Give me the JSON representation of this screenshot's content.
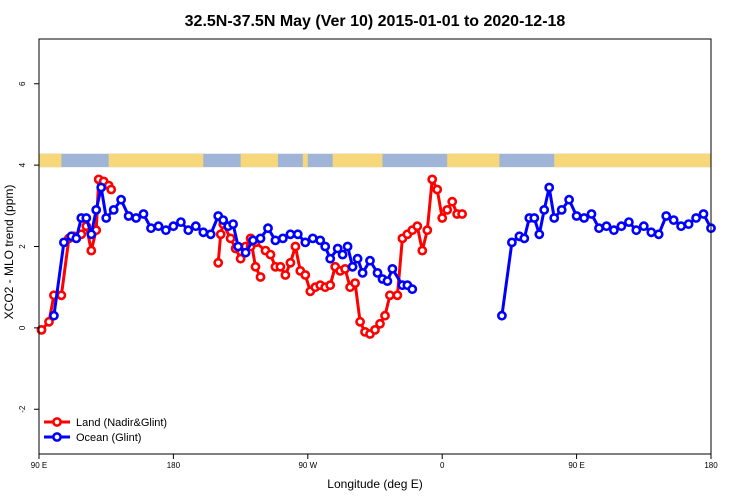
{
  "chart_data": {
    "type": "line",
    "title": "32.5N-37.5N May (Ver 10)   2015-01-01 to 2020-12-18",
    "xlabel": "Longitude (deg E)",
    "ylabel": "XCO2 - MLO trend (ppm)",
    "xlim": [
      -90,
      180
    ],
    "ylim": [
      -3.1,
      7.1
    ],
    "x_ticks": [
      -90,
      -36,
      18,
      72,
      126,
      180
    ],
    "x_tick_labels": [
      "90 E",
      "180",
      "90 W",
      "0",
      "90 E",
      "180"
    ],
    "y_ticks": [
      -2,
      0,
      2,
      4,
      6
    ],
    "y_tick_labels": [
      "-2",
      "0",
      "2",
      "4",
      "6"
    ],
    "grid": false,
    "legend_position": "bottom-left",
    "land_ocean_strip": {
      "y_range": [
        3.95,
        4.28
      ],
      "land_color": "#f6d77a",
      "ocean_color": "#9fb4d6",
      "land_segments": [
        [
          -90,
          -81
        ],
        [
          -62,
          -24
        ],
        [
          -9,
          6
        ],
        [
          16,
          18
        ],
        [
          28,
          48
        ],
        [
          74,
          95
        ],
        [
          117,
          180
        ]
      ]
    },
    "series": [
      {
        "name": "Land (Nadir&Glint)",
        "color": "#ff0000",
        "segments": [
          {
            "x": [
              -89,
              -86,
              -84,
              -81,
              -78,
              -76,
              -73,
              -71,
              -69,
              -67,
              -66,
              -64,
              -62,
              -61
            ],
            "y": [
              -0.05,
              0.15,
              0.8,
              0.8,
              2.2,
              2.25,
              2.3,
              2.5,
              1.9,
              2.4,
              3.65,
              3.6,
              3.5,
              3.4
            ]
          },
          {
            "x": [
              -18,
              -17,
              -16,
              -13,
              -11,
              -9,
              -7,
              -5,
              -3,
              -1
            ],
            "y": [
              1.6,
              2.3,
              2.55,
              2.2,
              1.95,
              1.7,
              2.0,
              2.2,
              1.5,
              1.25
            ]
          },
          {
            "x": [
              -5,
              -3,
              1,
              3,
              5,
              7,
              9,
              11,
              13,
              15,
              17,
              19,
              21,
              23,
              25,
              27,
              29,
              31,
              33,
              35,
              37,
              39,
              41,
              43,
              45,
              47,
              49,
              51,
              54,
              56,
              58,
              60,
              62,
              64,
              66,
              68,
              70,
              72,
              74,
              76,
              78,
              80
            ],
            "y": [
              2.0,
              2.1,
              1.9,
              1.8,
              1.5,
              1.5,
              1.3,
              1.6,
              2.0,
              1.4,
              1.3,
              0.9,
              1.0,
              1.05,
              1.0,
              1.05,
              1.5,
              1.4,
              1.45,
              1.0,
              1.1,
              0.15,
              -0.1,
              -0.15,
              -0.05,
              0.1,
              0.3,
              0.8,
              0.8,
              2.2,
              2.3,
              2.4,
              2.5,
              1.9,
              2.4,
              3.65,
              3.4,
              2.7,
              2.9,
              3.1,
              2.8,
              2.8
            ]
          }
        ]
      },
      {
        "name": "Ocean (Glint)",
        "color": "#0000ff",
        "segments": [
          {
            "x": [
              -84,
              -80,
              -77,
              -75,
              -73,
              -71,
              -69,
              -67,
              -65,
              -63,
              -60,
              -57,
              -54,
              -51,
              -48,
              -45,
              -42,
              -39,
              -36,
              -33,
              -30,
              -27,
              -24,
              -21,
              -18,
              -16
            ],
            "y": [
              0.3,
              2.1,
              2.25,
              2.2,
              2.7,
              2.7,
              2.3,
              2.9,
              3.45,
              2.7,
              2.9,
              3.15,
              2.75,
              2.7,
              2.8,
              2.45,
              2.5,
              2.4,
              2.5,
              2.6,
              2.4,
              2.5,
              2.35,
              2.3,
              2.75,
              2.65
            ]
          },
          {
            "x": [
              -14,
              -12,
              -10,
              -7,
              -4,
              -1,
              2,
              5,
              8,
              11,
              14,
              17,
              20,
              23,
              25,
              27,
              30,
              32,
              34,
              36,
              38,
              40,
              43,
              46,
              48,
              50,
              52,
              56,
              58,
              60
            ],
            "y": [
              2.5,
              2.55,
              2.0,
              1.85,
              2.15,
              2.2,
              2.45,
              2.15,
              2.2,
              2.3,
              2.3,
              2.1,
              2.2,
              2.15,
              2.0,
              1.7,
              1.95,
              1.8,
              2.0,
              1.5,
              1.7,
              1.35,
              1.65,
              1.35,
              1.2,
              1.15,
              1.45,
              1.05,
              1.05,
              0.95
            ]
          },
          {
            "x": [
              96,
              100,
              103,
              105,
              107,
              109,
              111,
              113,
              115,
              117,
              120,
              123,
              126,
              129,
              132,
              135,
              138,
              141,
              144,
              147,
              150,
              153,
              156,
              159,
              162,
              165,
              168,
              171,
              174,
              177,
              180
            ],
            "y": [
              0.3,
              2.1,
              2.25,
              2.2,
              2.7,
              2.7,
              2.3,
              2.9,
              3.45,
              2.7,
              2.9,
              3.15,
              2.75,
              2.7,
              2.8,
              2.45,
              2.5,
              2.4,
              2.5,
              2.6,
              2.4,
              2.5,
              2.35,
              2.3,
              2.75,
              2.65,
              2.5,
              2.55,
              2.7,
              2.8,
              2.45
            ]
          }
        ]
      }
    ]
  }
}
